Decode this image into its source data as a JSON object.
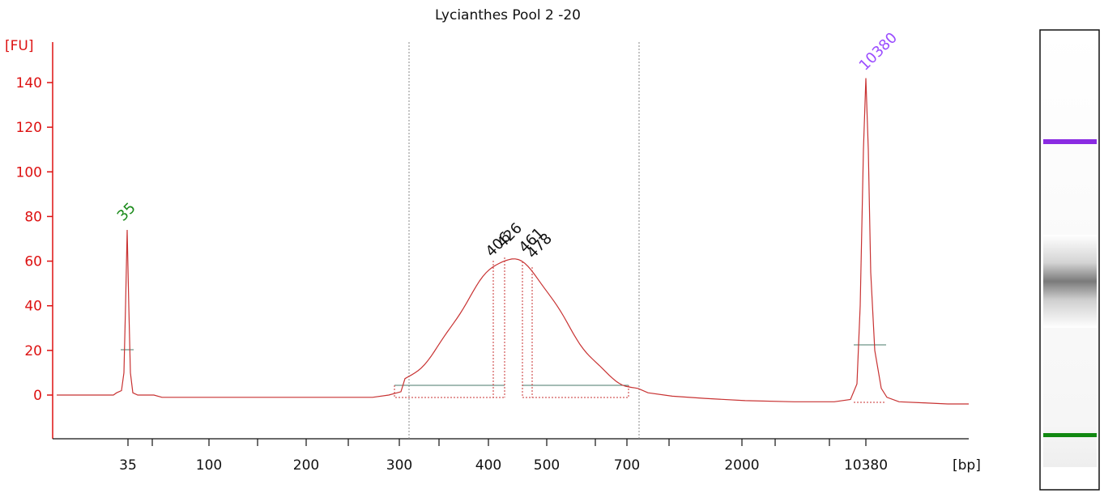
{
  "chart_data": {
    "type": "line",
    "title": "Lycianthes Pool 2 -20",
    "ylabel": "[FU]",
    "xlabel": "[bp]",
    "ylim": [
      -20,
      160
    ],
    "yticks": [
      0,
      20,
      40,
      60,
      80,
      100,
      120,
      140
    ],
    "xticks": [
      "35",
      "100",
      "200",
      "300",
      "400",
      "500",
      "700",
      "2000",
      "10380"
    ],
    "series": [
      {
        "values_description_note": "",
        "x": [
          "35",
          "100",
          "200",
          "300",
          "400",
          "500",
          "700",
          "2000",
          "10380"
        ],
        "y": [
          74,
          -1,
          -1,
          1,
          60,
          58,
          4,
          -3,
          142
        ]
      }
    ],
    "peaks": [
      {
        "label": "35",
        "color": "#1a8a1a",
        "height": 74
      },
      {
        "label": "406",
        "color": "#111111",
        "height": 61
      },
      {
        "label": "426",
        "color": "#111111",
        "height": 62
      },
      {
        "label": "461",
        "color": "#111111",
        "height": 61
      },
      {
        "label": "478",
        "color": "#111111",
        "height": 60
      },
      {
        "label": "10380",
        "color": "#9b4dff",
        "height": 142
      }
    ],
    "gel": {
      "bands": [
        {
          "name": "upper-marker",
          "color": "#8a2be2"
        },
        {
          "name": "sample-smear",
          "color": "#777777"
        },
        {
          "name": "lower-marker",
          "color": "#118811"
        }
      ]
    },
    "colors": {
      "trace": "#c83232",
      "axis": "#dd1111",
      "baseline": "#4a7a6a"
    }
  }
}
